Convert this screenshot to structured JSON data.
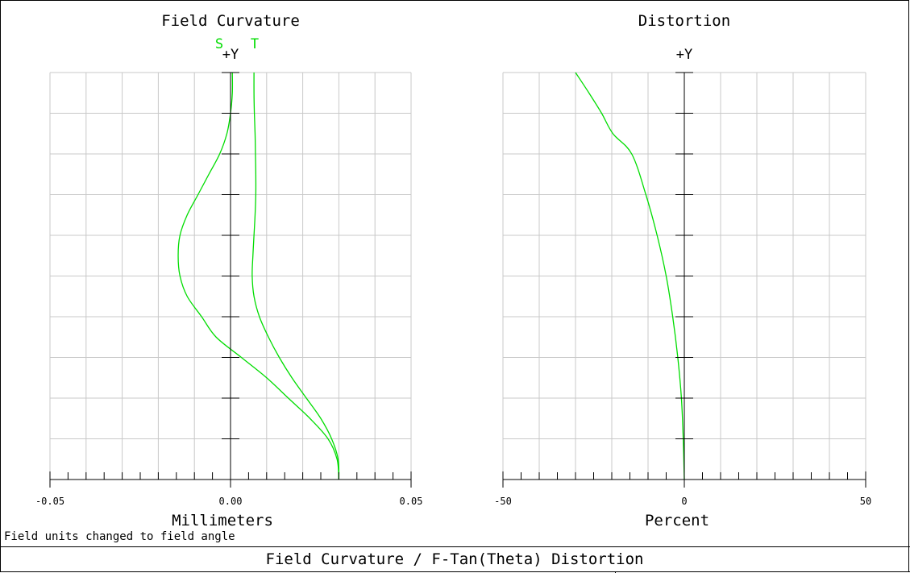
{
  "footer_title": "Field Curvature / F-Tan(Theta) Distortion",
  "note": "Field units changed to field angle",
  "chart_data": [
    {
      "type": "line",
      "title": "Field Curvature",
      "xlabel": "Millimeters",
      "ylabel": "+Y",
      "xlim": [
        -0.05,
        0.05
      ],
      "ylim": [
        0,
        1
      ],
      "x_tick_labels": [
        "-0.05",
        "0.00",
        "0.05"
      ],
      "grid": true,
      "legend": [
        "S",
        "T"
      ],
      "color": "#00dd00",
      "series": [
        {
          "name": "S",
          "points": [
            [
              0.03,
              0.0
            ],
            [
              0.0295,
              0.05
            ],
            [
              0.027,
              0.1
            ],
            [
              0.022,
              0.15
            ],
            [
              0.016,
              0.2
            ],
            [
              0.01,
              0.25
            ],
            [
              0.003,
              0.3
            ],
            [
              -0.004,
              0.35
            ],
            [
              -0.008,
              0.4
            ],
            [
              -0.012,
              0.45
            ],
            [
              -0.014,
              0.5
            ],
            [
              -0.0145,
              0.55
            ],
            [
              -0.014,
              0.6
            ],
            [
              -0.012,
              0.65
            ],
            [
              -0.009,
              0.7
            ],
            [
              -0.006,
              0.75
            ],
            [
              -0.003,
              0.8
            ],
            [
              -0.001,
              0.85
            ],
            [
              0.0,
              0.9
            ],
            [
              0.0005,
              0.95
            ],
            [
              0.0005,
              1.0
            ]
          ]
        },
        {
          "name": "T",
          "points": [
            [
              0.03,
              0.0
            ],
            [
              0.0298,
              0.05
            ],
            [
              0.028,
              0.1
            ],
            [
              0.025,
              0.15
            ],
            [
              0.021,
              0.2
            ],
            [
              0.017,
              0.25
            ],
            [
              0.0135,
              0.3
            ],
            [
              0.0105,
              0.35
            ],
            [
              0.008,
              0.4
            ],
            [
              0.0065,
              0.45
            ],
            [
              0.006,
              0.5
            ],
            [
              0.0062,
              0.55
            ],
            [
              0.0065,
              0.6
            ],
            [
              0.0068,
              0.65
            ],
            [
              0.007,
              0.7
            ],
            [
              0.007,
              0.75
            ],
            [
              0.0069,
              0.8
            ],
            [
              0.0068,
              0.85
            ],
            [
              0.0066,
              0.9
            ],
            [
              0.0065,
              0.95
            ],
            [
              0.0065,
              1.0
            ]
          ]
        }
      ]
    },
    {
      "type": "line",
      "title": "Distortion",
      "xlabel": "Percent",
      "ylabel": "+Y",
      "xlim": [
        -50,
        50
      ],
      "ylim": [
        0,
        1
      ],
      "x_tick_labels": [
        "-50",
        "0",
        "50"
      ],
      "grid": true,
      "color": "#00dd00",
      "series": [
        {
          "points": [
            [
              0.0,
              0.0
            ],
            [
              -0.3,
              0.1
            ],
            [
              -0.8,
              0.2
            ],
            [
              -1.8,
              0.3
            ],
            [
              -3.2,
              0.4
            ],
            [
              -5.0,
              0.5
            ],
            [
              -7.5,
              0.6
            ],
            [
              -10.6,
              0.7
            ],
            [
              -14.5,
              0.8
            ],
            [
              -19.7,
              0.85
            ],
            [
              -22.8,
              0.9
            ],
            [
              -26.3,
              0.95
            ],
            [
              -30.0,
              1.0
            ]
          ]
        }
      ]
    }
  ]
}
